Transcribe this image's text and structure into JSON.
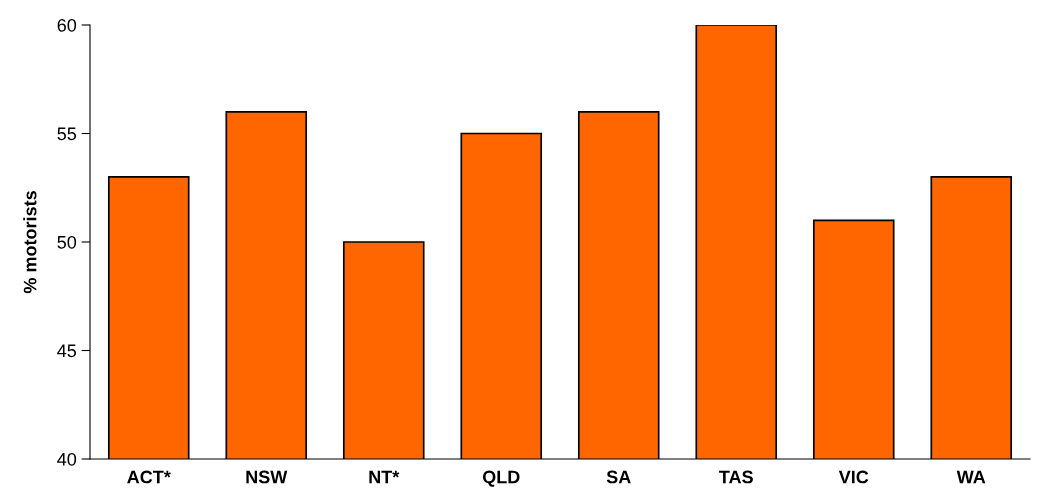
{
  "chart_data": {
    "type": "bar",
    "ylabel": "% motorists",
    "categories": [
      "ACT*",
      "NSW",
      "NT*",
      "QLD",
      "SA",
      "TAS",
      "VIC",
      "WA"
    ],
    "values": [
      53,
      56,
      50,
      55,
      56,
      60,
      51,
      53
    ],
    "color": "#ff6600",
    "ylim": [
      40,
      60
    ],
    "yticks": [
      40,
      45,
      50,
      55,
      60
    ],
    "grid": false,
    "legend": false
  }
}
